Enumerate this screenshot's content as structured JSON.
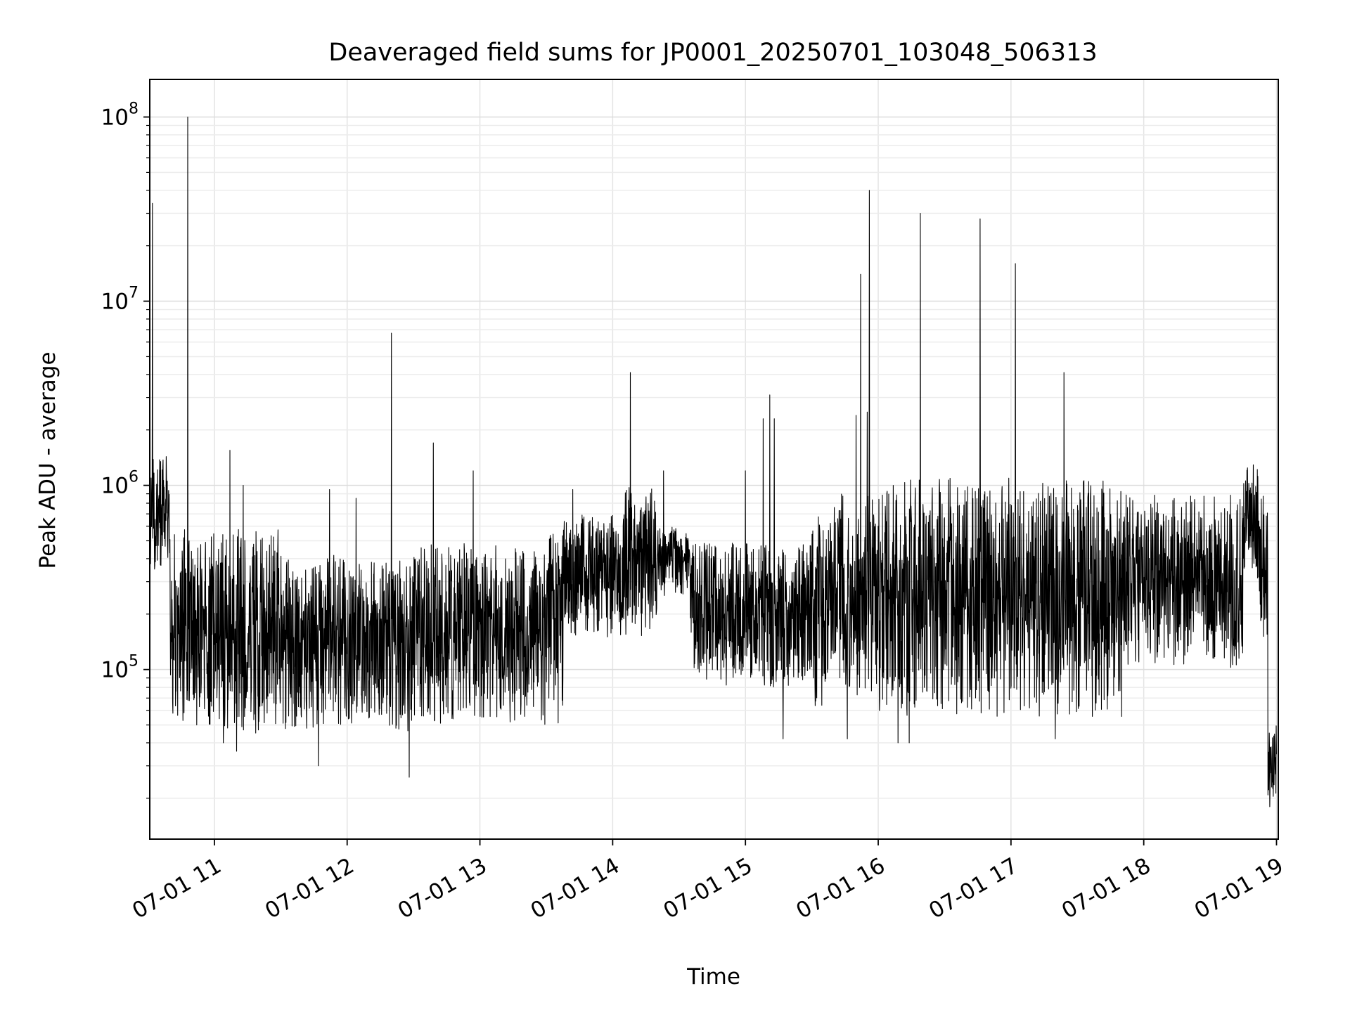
{
  "chart_data": {
    "type": "line",
    "title": "Deaveraged field sums for JP0001_20250701_103048_506313",
    "xlabel": "Time",
    "ylabel": "Peak ADU - average",
    "yscale": "log",
    "grid": true,
    "xlim": [
      "2025-07-01 10:30:48",
      "2025-07-01 19:00:00"
    ],
    "ylim": [
      12000,
      160000000
    ],
    "x_ticks": [
      "07-01 11",
      "07-01 12",
      "07-01 13",
      "07-01 14",
      "07-01 15",
      "07-01 16",
      "07-01 17",
      "07-01 18",
      "07-01 19"
    ],
    "x_tick_times": [
      "2025-07-01 11:00",
      "2025-07-01 12:00",
      "2025-07-01 13:00",
      "2025-07-01 14:00",
      "2025-07-01 15:00",
      "2025-07-01 16:00",
      "2025-07-01 17:00",
      "2025-07-01 18:00",
      "2025-07-01 19:00"
    ],
    "y_ticks": [
      {
        "value": 100000,
        "base": "10",
        "exp": "5"
      },
      {
        "value": 1000000,
        "base": "10",
        "exp": "6"
      },
      {
        "value": 10000000,
        "base": "10",
        "exp": "7"
      },
      {
        "value": 100000000,
        "base": "10",
        "exp": "8"
      }
    ],
    "line_color": "#000000",
    "baseline_segments": [
      {
        "t0": "2025-07-01 10:30:48",
        "t1": "2025-07-01 10:40",
        "lo": 350000,
        "hi": 1500000
      },
      {
        "t0": "2025-07-01 10:40",
        "t1": "2025-07-01 11:00",
        "lo": 50000,
        "hi": 600000
      },
      {
        "t0": "2025-07-01 11:00",
        "t1": "2025-07-01 11:30",
        "lo": 45000,
        "hi": 600000
      },
      {
        "t0": "2025-07-01 11:30",
        "t1": "2025-07-01 12:30",
        "lo": 45000,
        "hi": 420000
      },
      {
        "t0": "2025-07-01 12:30",
        "t1": "2025-07-01 13:30",
        "lo": 50000,
        "hi": 500000
      },
      {
        "t0": "2025-07-01 13:30",
        "t1": "2025-07-01 13:38",
        "lo": 50000,
        "hi": 600000
      },
      {
        "t0": "2025-07-01 13:38",
        "t1": "2025-07-01 14:05",
        "lo": 150000,
        "hi": 700000
      },
      {
        "t0": "2025-07-01 14:05",
        "t1": "2025-07-01 14:20",
        "lo": 150000,
        "hi": 1000000
      },
      {
        "t0": "2025-07-01 14:20",
        "t1": "2025-07-01 14:35",
        "lo": 250000,
        "hi": 600000
      },
      {
        "t0": "2025-07-01 14:35",
        "t1": "2025-07-01 15:30",
        "lo": 80000,
        "hi": 500000
      },
      {
        "t0": "2025-07-01 15:30",
        "t1": "2025-07-01 16:00",
        "lo": 60000,
        "hi": 900000
      },
      {
        "t0": "2025-07-01 16:00",
        "t1": "2025-07-01 17:50",
        "lo": 55000,
        "hi": 1100000
      },
      {
        "t0": "2025-07-01 17:50",
        "t1": "2025-07-01 18:45",
        "lo": 100000,
        "hi": 900000
      },
      {
        "t0": "2025-07-01 18:45",
        "t1": "2025-07-01 18:52",
        "lo": 300000,
        "hi": 1300000
      },
      {
        "t0": "2025-07-01 18:52",
        "t1": "2025-07-01 18:56",
        "lo": 150000,
        "hi": 900000
      },
      {
        "t0": "2025-07-01 18:56",
        "t1": "2025-07-01 19:00",
        "lo": 20000,
        "hi": 50000
      }
    ],
    "spikes": [
      {
        "t": "2025-07-01 10:32",
        "y": 34000000
      },
      {
        "t": "2025-07-01 10:48",
        "y": 100000000
      },
      {
        "t": "2025-07-01 11:07",
        "y": 1550000
      },
      {
        "t": "2025-07-01 11:13",
        "y": 1000000
      },
      {
        "t": "2025-07-01 11:52",
        "y": 950000
      },
      {
        "t": "2025-07-01 12:04",
        "y": 850000
      },
      {
        "t": "2025-07-01 12:20",
        "y": 6700000
      },
      {
        "t": "2025-07-01 12:39",
        "y": 1700000
      },
      {
        "t": "2025-07-01 12:57",
        "y": 1200000
      },
      {
        "t": "2025-07-01 13:42",
        "y": 950000
      },
      {
        "t": "2025-07-01 14:08",
        "y": 4100000
      },
      {
        "t": "2025-07-01 14:23",
        "y": 1200000
      },
      {
        "t": "2025-07-01 15:00",
        "y": 1200000
      },
      {
        "t": "2025-07-01 15:08",
        "y": 2300000
      },
      {
        "t": "2025-07-01 15:11",
        "y": 3100000
      },
      {
        "t": "2025-07-01 15:13",
        "y": 2300000
      },
      {
        "t": "2025-07-01 15:50",
        "y": 2400000
      },
      {
        "t": "2025-07-01 15:52",
        "y": 14000000
      },
      {
        "t": "2025-07-01 15:55",
        "y": 2500000
      },
      {
        "t": "2025-07-01 15:56",
        "y": 40000000
      },
      {
        "t": "2025-07-01 16:19",
        "y": 30000000
      },
      {
        "t": "2025-07-01 16:46",
        "y": 28000000
      },
      {
        "t": "2025-07-01 17:02",
        "y": 16000000
      },
      {
        "t": "2025-07-01 17:24",
        "y": 4100000
      }
    ],
    "dips": [
      {
        "t": "2025-07-01 10:52",
        "y": 50000
      },
      {
        "t": "2025-07-01 11:04",
        "y": 40000
      },
      {
        "t": "2025-07-01 11:10",
        "y": 36000
      },
      {
        "t": "2025-07-01 11:47",
        "y": 30000
      },
      {
        "t": "2025-07-01 12:28",
        "y": 26000
      },
      {
        "t": "2025-07-01 15:17",
        "y": 42000
      },
      {
        "t": "2025-07-01 15:46",
        "y": 42000
      },
      {
        "t": "2025-07-01 16:09",
        "y": 40000
      },
      {
        "t": "2025-07-01 16:14",
        "y": 40000
      },
      {
        "t": "2025-07-01 17:20",
        "y": 42000
      },
      {
        "t": "2025-07-01 18:57",
        "y": 18000
      }
    ]
  }
}
